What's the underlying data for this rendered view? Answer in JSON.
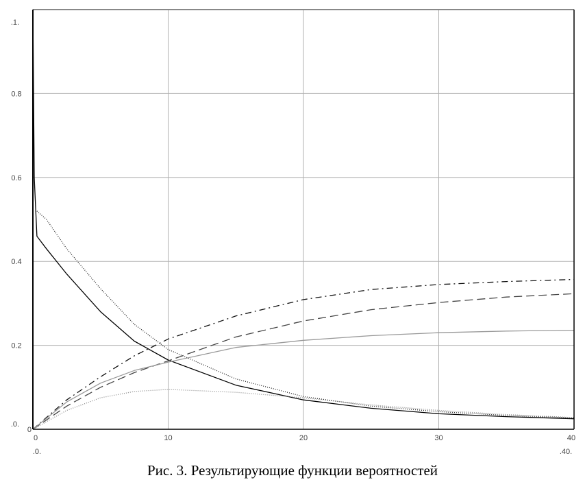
{
  "chart_data": {
    "type": "line",
    "title": "",
    "caption": "Рис. 3. Результирующие функции вероятностей",
    "xlabel": "",
    "ylabel": "",
    "xlim": [
      0,
      40
    ],
    "ylim": [
      0,
      1
    ],
    "grid": true,
    "x_ticks": [
      "0",
      "10",
      "20",
      "30",
      "40"
    ],
    "y_ticks": [
      "0",
      "0.2",
      "0.4",
      "0.6",
      "0.8"
    ],
    "y_range_labels": {
      "max": ".1.",
      "min": ".0."
    },
    "x_range_labels": {
      "min": ".0.",
      "max": ".40."
    },
    "series": [
      {
        "name": "solid-black",
        "color": "#000000",
        "dash": "",
        "x": [
          0,
          0.1,
          0.3,
          1,
          2.5,
          5,
          7.5,
          10,
          15,
          20,
          25,
          30,
          35,
          40
        ],
        "y": [
          1,
          0.6,
          0.46,
          0.43,
          0.37,
          0.28,
          0.21,
          0.165,
          0.105,
          0.07,
          0.05,
          0.037,
          0.03,
          0.025
        ]
      },
      {
        "name": "dotted-dark",
        "color": "#222222",
        "dash": "1,2",
        "x": [
          0.3,
          1,
          2.5,
          5,
          7.5,
          10,
          15,
          20,
          25,
          30,
          35,
          40
        ],
        "y": [
          0.52,
          0.5,
          0.43,
          0.335,
          0.25,
          0.19,
          0.12,
          0.078,
          0.055,
          0.042,
          0.033,
          0.027
        ]
      },
      {
        "name": "dash-dot",
        "color": "#111111",
        "dash": "9,5,2,5",
        "x": [
          0,
          2.5,
          5,
          7.5,
          10,
          15,
          20,
          25,
          30,
          35,
          40
        ],
        "y": [
          0,
          0.07,
          0.125,
          0.175,
          0.215,
          0.27,
          0.309,
          0.333,
          0.345,
          0.352,
          0.357
        ]
      },
      {
        "name": "dashed",
        "color": "#444444",
        "dash": "12,6",
        "x": [
          0,
          2.5,
          5,
          7.5,
          10,
          15,
          20,
          25,
          30,
          35,
          40
        ],
        "y": [
          0,
          0.055,
          0.1,
          0.135,
          0.163,
          0.22,
          0.258,
          0.285,
          0.302,
          0.315,
          0.323
        ]
      },
      {
        "name": "solid-gray",
        "color": "#999999",
        "dash": "",
        "x": [
          0,
          2.5,
          5,
          7.5,
          10,
          15,
          20,
          25,
          30,
          35,
          40
        ],
        "y": [
          0,
          0.065,
          0.11,
          0.14,
          0.16,
          0.195,
          0.212,
          0.223,
          0.23,
          0.234,
          0.236
        ]
      },
      {
        "name": "dotted-light",
        "color": "#888888",
        "dash": "1,2",
        "x": [
          0,
          2.5,
          5,
          7.5,
          10,
          15,
          20,
          25,
          30,
          35,
          40
        ],
        "y": [
          0,
          0.045,
          0.075,
          0.09,
          0.095,
          0.088,
          0.075,
          0.058,
          0.045,
          0.035,
          0.028
        ]
      }
    ]
  }
}
